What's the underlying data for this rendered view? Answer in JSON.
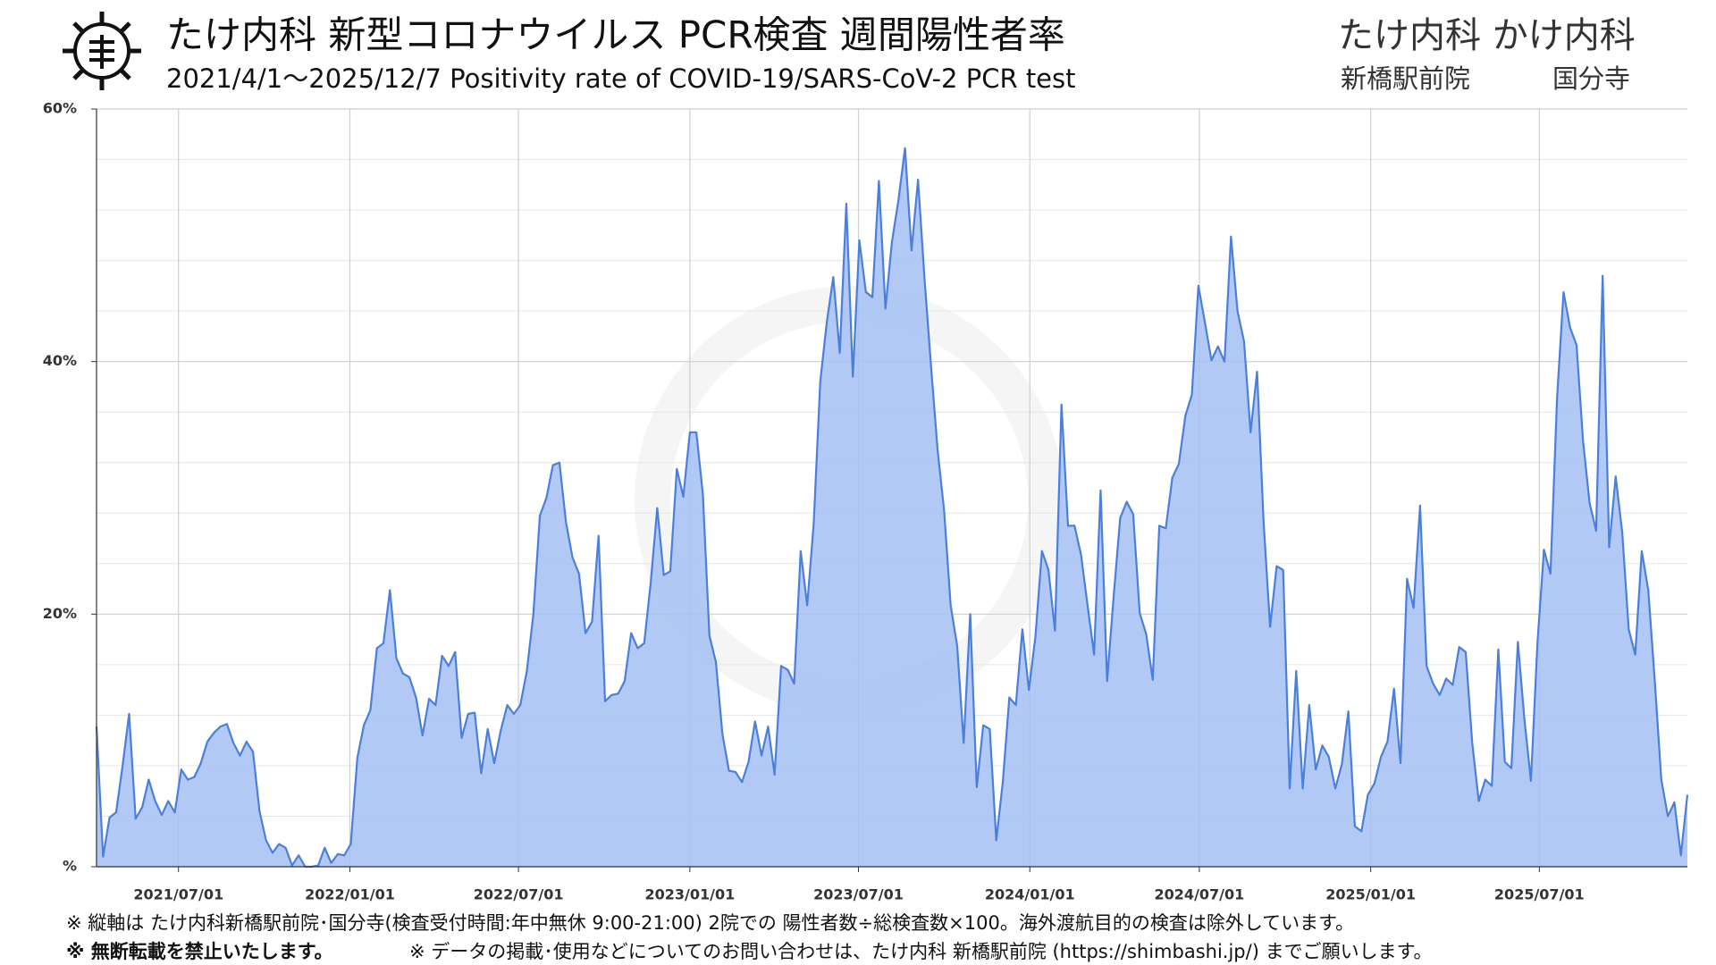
{
  "chart_data": {
    "type": "area",
    "title": "たけ内科 新型コロナウイルス PCR検査 週間陽性者率",
    "subtitle": "2021/4/1〜2025/12/7  Positivity rate of COVID-19/SARS-CoV-2 PCR test",
    "clinics": {
      "name": "たけ内科 かけ内科",
      "branch_1": "新橋駅前院",
      "branch_2": "国分寺"
    },
    "notes": [
      "※ 縦軸は たけ内科新橋駅前院･国分寺(検査受付時間:年中無休 9:00-21:00) 2院での 陽性者数÷総検査数×100。海外渡航目的の検査は除外しています。",
      "※ 無断転載を禁止いたします。",
      "※ データの掲載･使用などについてのお問い合わせは、たけ内科 新橋駅前院 (https://shimbashi.jp/) までご願いします。"
    ],
    "color": "#4a7fdc",
    "fill": "#a3bff2",
    "grid": true,
    "xlim": [
      "2021/04/04",
      "2025/12/07"
    ],
    "xticks": [
      "2021/07/01",
      "2022/01/01",
      "2022/07/01",
      "2023/01/01",
      "2023/07/01",
      "2024/01/01",
      "2024/07/01",
      "2025/01/01",
      "2025/07/01"
    ],
    "ylim": [
      0,
      60
    ],
    "yticks": [
      {
        "value": 0,
        "label": "%"
      },
      {
        "value": 20,
        "label": "20%"
      },
      {
        "value": 40,
        "label": "40%"
      },
      {
        "value": 60,
        "label": "60%"
      }
    ],
    "minor_yticks": [
      4,
      8,
      12,
      16,
      24,
      28,
      32,
      36,
      44,
      48,
      52,
      56
    ],
    "x": [
      "2021/04/04",
      "2021/04/11",
      "2021/04/18",
      "2021/04/25",
      "2021/05/02",
      "2021/05/09",
      "2021/05/16",
      "2021/05/23",
      "2021/05/30",
      "2021/06/06",
      "2021/06/13",
      "2021/06/20",
      "2021/06/27",
      "2021/07/04",
      "2021/07/11",
      "2021/07/18",
      "2021/07/25",
      "2021/08/01",
      "2021/08/08",
      "2021/08/15",
      "2021/08/22",
      "2021/08/29",
      "2021/09/05",
      "2021/09/12",
      "2021/09/19",
      "2021/09/26",
      "2021/10/03",
      "2021/10/10",
      "2021/10/17",
      "2021/10/24",
      "2021/10/31",
      "2021/11/07",
      "2021/11/14",
      "2021/11/21",
      "2021/11/28",
      "2021/12/05",
      "2021/12/12",
      "2021/12/19",
      "2021/12/26",
      "2022/01/02",
      "2022/01/09",
      "2022/01/16",
      "2022/01/23",
      "2022/01/30",
      "2022/02/06",
      "2022/02/13",
      "2022/02/20",
      "2022/02/27",
      "2022/03/06",
      "2022/03/13",
      "2022/03/20",
      "2022/03/27",
      "2022/04/03",
      "2022/04/10",
      "2022/04/17",
      "2022/04/24",
      "2022/05/01",
      "2022/05/08",
      "2022/05/15",
      "2022/05/22",
      "2022/05/29",
      "2022/06/05",
      "2022/06/12",
      "2022/06/19",
      "2022/06/26",
      "2022/07/03",
      "2022/07/10",
      "2022/07/17",
      "2022/07/24",
      "2022/07/31",
      "2022/08/07",
      "2022/08/14",
      "2022/08/21",
      "2022/08/28",
      "2022/09/04",
      "2022/09/11",
      "2022/09/18",
      "2022/09/25",
      "2022/10/02",
      "2022/10/09",
      "2022/10/16",
      "2022/10/23",
      "2022/10/30",
      "2022/11/06",
      "2022/11/13",
      "2022/11/20",
      "2022/11/27",
      "2022/12/04",
      "2022/12/11",
      "2022/12/18",
      "2022/12/25",
      "2023/01/01",
      "2023/01/08",
      "2023/01/15",
      "2023/01/22",
      "2023/01/29",
      "2023/02/05",
      "2023/02/12",
      "2023/02/19",
      "2023/02/26",
      "2023/03/05",
      "2023/03/12",
      "2023/03/19",
      "2023/03/26",
      "2023/04/02",
      "2023/04/09",
      "2023/04/16",
      "2023/04/23",
      "2023/04/30",
      "2023/05/07",
      "2023/05/14",
      "2023/05/21",
      "2023/05/28",
      "2023/06/04",
      "2023/06/11",
      "2023/06/18",
      "2023/06/25",
      "2023/07/02",
      "2023/07/09",
      "2023/07/16",
      "2023/07/23",
      "2023/07/30",
      "2023/08/06",
      "2023/08/13",
      "2023/08/20",
      "2023/08/27",
      "2023/09/03",
      "2023/09/10",
      "2023/09/17",
      "2023/09/24",
      "2023/10/01",
      "2023/10/08",
      "2023/10/15",
      "2023/10/22",
      "2023/10/29",
      "2023/11/05",
      "2023/11/12",
      "2023/11/19",
      "2023/11/26",
      "2023/12/03",
      "2023/12/10",
      "2023/12/17",
      "2023/12/24",
      "2023/12/31",
      "2024/01/07",
      "2024/01/14",
      "2024/01/21",
      "2024/01/28",
      "2024/02/04",
      "2024/02/11",
      "2024/02/18",
      "2024/02/25",
      "2024/03/03",
      "2024/03/10",
      "2024/03/17",
      "2024/03/24",
      "2024/03/31",
      "2024/04/07",
      "2024/04/14",
      "2024/04/21",
      "2024/04/28",
      "2024/05/05",
      "2024/05/12",
      "2024/05/19",
      "2024/05/26",
      "2024/06/02",
      "2024/06/09",
      "2024/06/16",
      "2024/06/23",
      "2024/06/30",
      "2024/07/07",
      "2024/07/14",
      "2024/07/21",
      "2024/07/28",
      "2024/08/04",
      "2024/08/11",
      "2024/08/18",
      "2024/08/25",
      "2024/09/01",
      "2024/09/08",
      "2024/09/15",
      "2024/09/22",
      "2024/09/29",
      "2024/10/06",
      "2024/10/13",
      "2024/10/20",
      "2024/10/27",
      "2024/11/03",
      "2024/11/10",
      "2024/11/17",
      "2024/11/24",
      "2024/12/01",
      "2024/12/08",
      "2024/12/15",
      "2024/12/22",
      "2024/12/29",
      "2025/01/05",
      "2025/01/12",
      "2025/01/19",
      "2025/01/26",
      "2025/02/02",
      "2025/02/09",
      "2025/02/16",
      "2025/02/23",
      "2025/03/02",
      "2025/03/09",
      "2025/03/16",
      "2025/03/23",
      "2025/03/30",
      "2025/04/06",
      "2025/04/13",
      "2025/04/20",
      "2025/04/27",
      "2025/05/04",
      "2025/05/11",
      "2025/05/18",
      "2025/05/25",
      "2025/06/01",
      "2025/06/08",
      "2025/06/15",
      "2025/06/22",
      "2025/06/29",
      "2025/07/06",
      "2025/07/13",
      "2025/07/20",
      "2025/07/27",
      "2025/08/03",
      "2025/08/10",
      "2025/08/17",
      "2025/08/24",
      "2025/08/31",
      "2025/09/07",
      "2025/09/14",
      "2025/09/21",
      "2025/09/28",
      "2025/10/05",
      "2025/10/12",
      "2025/10/19",
      "2025/10/26",
      "2025/11/02",
      "2025/11/09",
      "2025/11/16",
      "2025/11/23",
      "2025/11/30",
      "2025/12/07"
    ],
    "values": [
      11.1,
      0.8,
      3.9,
      4.3,
      8.0,
      12.1,
      3.8,
      4.7,
      6.9,
      5.2,
      4.1,
      5.2,
      4.3,
      7.7,
      6.9,
      7.1,
      8.2,
      9.9,
      10.6,
      11.1,
      11.3,
      9.8,
      8.8,
      9.9,
      9.1,
      4.4,
      2.1,
      1.1,
      1.8,
      1.5,
      0.1,
      0.9,
      0,
      0,
      0.1,
      1.5,
      0.3,
      1.0,
      0.9,
      1.8,
      8.6,
      11.2,
      12.4,
      17.3,
      17.7,
      21.9,
      16.5,
      15.3,
      15.0,
      13.4,
      10.4,
      13.3,
      12.8,
      16.7,
      15.9,
      17.0,
      10.2,
      12.1,
      12.2,
      7.4,
      10.9,
      8.2,
      10.8,
      12.8,
      12.1,
      12.8,
      15.5,
      20.0,
      27.8,
      29.2,
      31.8,
      32.0,
      27.3,
      24.5,
      23.2,
      18.5,
      19.4,
      26.2,
      13.1,
      13.6,
      13.7,
      14.7,
      18.5,
      17.3,
      17.7,
      22.5,
      28.4,
      23.1,
      23.4,
      31.5,
      29.3,
      34.4,
      34.4,
      29.5,
      18.3,
      16.2,
      10.5,
      7.6,
      7.5,
      6.7,
      8.3,
      11.5,
      8.8,
      11.1,
      7.3,
      15.9,
      15.6,
      14.5,
      25.0,
      20.7,
      27.2,
      38.4,
      43.1,
      46.7,
      40.7,
      52.5,
      38.8,
      49.6,
      45.5,
      45.1,
      54.3,
      44.2,
      49.5,
      52.8,
      56.9,
      48.8,
      54.4,
      46.5,
      39.6,
      33.0,
      28.2,
      20.7,
      17.5,
      9.8,
      20.0,
      6.3,
      11.2,
      10.9,
      2.1,
      6.7,
      13.4,
      12.8,
      18.8,
      14.0,
      18.2,
      25.0,
      23.5,
      18.7,
      36.6,
      27.0,
      27.0,
      24.7,
      20.7,
      16.8,
      29.8,
      14.7,
      21.4,
      27.6,
      28.9,
      27.9,
      20.1,
      18.4,
      14.8,
      27.0,
      26.8,
      30.8,
      31.9,
      35.7,
      37.4,
      46.0,
      43.1,
      40.1,
      41.2,
      40.0,
      49.9,
      44.0,
      41.6,
      34.4,
      39.2,
      27.3,
      19.0,
      23.8,
      23.5,
      6.2,
      15.5,
      6.2,
      12.8,
      7.7,
      9.6,
      8.7,
      6.2,
      8.1,
      12.3,
      3.2,
      2.8,
      5.7,
      6.6,
      8.7,
      9.9,
      14.1,
      8.2,
      22.8,
      20.5,
      28.6,
      15.9,
      14.5,
      13.6,
      14.9,
      14.4,
      17.4,
      17.0,
      9.8,
      5.2,
      6.9,
      6.4,
      17.2,
      8.3,
      7.8,
      17.8,
      11.7,
      6.8,
      17.7,
      25.1,
      23.2,
      37.0,
      45.5,
      42.7,
      41.3,
      33.7,
      28.8,
      26.6,
      46.8,
      25.3,
      30.9,
      26.5,
      18.8,
      16.8,
      25.0,
      21.9,
      14.7,
      6.9,
      4.0,
      5.1,
      0.9,
      5.7
    ]
  }
}
